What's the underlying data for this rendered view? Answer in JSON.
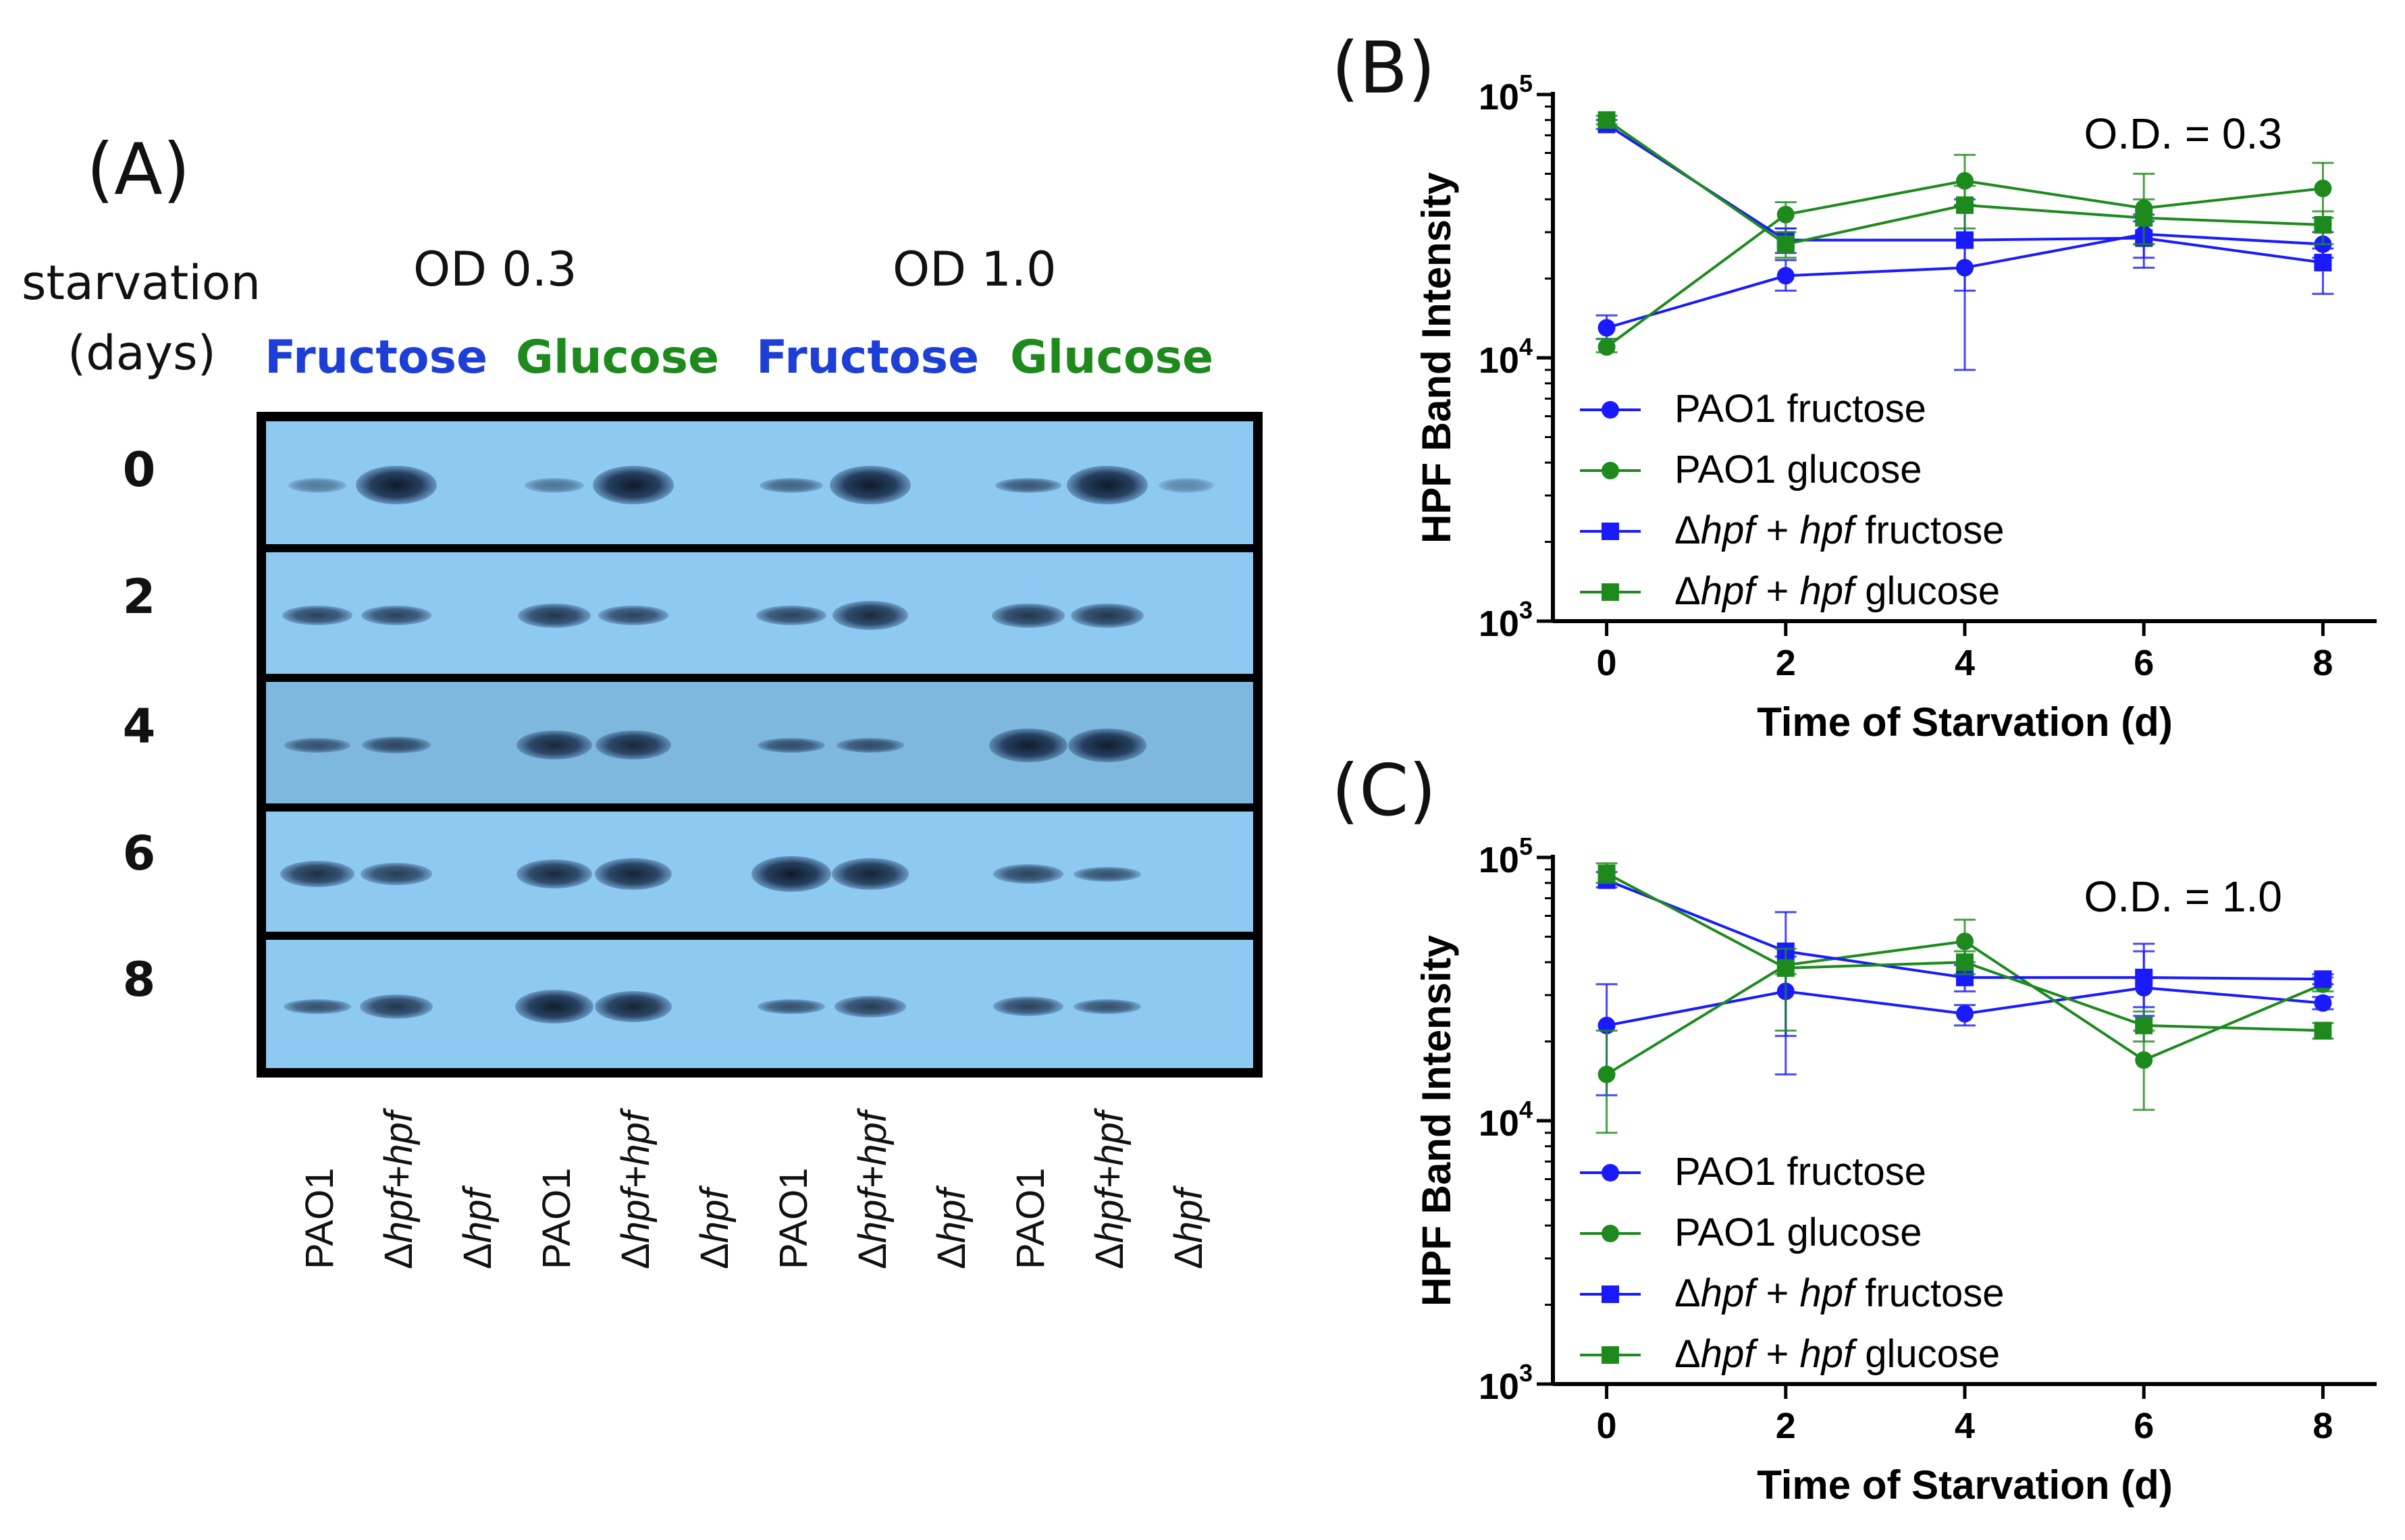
{
  "panel_a": {
    "letter": "(A)",
    "row_header": [
      "starvation",
      "(days)"
    ],
    "od_headers": [
      "OD 0.3",
      "OD 1.0"
    ],
    "sugars": [
      {
        "label": "Fructose",
        "color": "#1e3fd6"
      },
      {
        "label": "Glucose",
        "color": "#1e8a1e"
      },
      {
        "label": "Fructose",
        "color": "#1e3fd6"
      },
      {
        "label": "Glucose",
        "color": "#1e8a1e"
      }
    ],
    "days": [
      "0",
      "2",
      "4",
      "6",
      "8"
    ],
    "lanes": [
      {
        "pre": "",
        "it": "",
        "post": "PAO1"
      },
      {
        "pre": "Δ",
        "it": "hpf",
        "post": "+",
        "it2": "hpf"
      },
      {
        "pre": "Δ",
        "it": "hpf",
        "post": ""
      },
      {
        "pre": "",
        "it": "",
        "post": "PAO1"
      },
      {
        "pre": "Δ",
        "it": "hpf",
        "post": "+",
        "it2": "hpf"
      },
      {
        "pre": "Δ",
        "it": "hpf",
        "post": ""
      },
      {
        "pre": "",
        "it": "",
        "post": "PAO1"
      },
      {
        "pre": "Δ",
        "it": "hpf",
        "post": "+",
        "it2": "hpf"
      },
      {
        "pre": "Δ",
        "it": "hpf",
        "post": ""
      },
      {
        "pre": "",
        "it": "",
        "post": "PAO1"
      },
      {
        "pre": "Δ",
        "it": "hpf",
        "post": "+",
        "it2": "hpf"
      },
      {
        "pre": "Δ",
        "it": "hpf",
        "post": ""
      }
    ],
    "band_intensity": [
      [
        0.15,
        1.0,
        0.02,
        0.2,
        1.0,
        0.0,
        0.35,
        1.0,
        0.0,
        0.45,
        1.0,
        0.05
      ],
      [
        0.6,
        0.6,
        0.0,
        0.7,
        0.6,
        0.0,
        0.6,
        0.8,
        0.0,
        0.7,
        0.7,
        0.0
      ],
      [
        0.45,
        0.55,
        0.0,
        0.8,
        0.8,
        0.0,
        0.5,
        0.5,
        0.0,
        0.9,
        0.9,
        0.0
      ],
      [
        0.75,
        0.65,
        0.0,
        0.8,
        0.85,
        0.0,
        0.95,
        0.85,
        0.0,
        0.6,
        0.5,
        0.0
      ],
      [
        0.5,
        0.7,
        0.0,
        0.9,
        0.85,
        0.0,
        0.5,
        0.65,
        0.0,
        0.6,
        0.5,
        0.0
      ]
    ]
  },
  "chart_data": [
    {
      "type": "line",
      "panel": "(B)",
      "title": "",
      "annotation": "O.D. = 0.3",
      "xlabel": "Time of Starvation (d)",
      "ylabel": "HPF Band Intensity",
      "yscale": "log",
      "ylim": [
        1000,
        100000
      ],
      "xlim": [
        -0.6,
        8.6
      ],
      "xticks": [
        "0",
        "2",
        "4",
        "6",
        "8"
      ],
      "x": [
        0,
        2,
        4,
        6,
        8
      ],
      "legend_position": "bottom-left",
      "series": [
        {
          "name": "PAO1 fructose",
          "marker": "circle",
          "color": "#1a1aff",
          "values": [
            13000,
            20500,
            22000,
            29500,
            27000
          ],
          "err_hi": [
            14500,
            23500,
            38000,
            35000,
            30000
          ],
          "err_lo": [
            11800,
            18000,
            9000,
            24000,
            24000
          ]
        },
        {
          "name": "PAO1 glucose",
          "marker": "circle",
          "color": "#1e8a1e",
          "values": [
            11000,
            35000,
            47000,
            37000,
            44000
          ],
          "err_hi": [
            11800,
            39000,
            59000,
            50000,
            55000
          ],
          "err_lo": [
            10500,
            31000,
            38000,
            27000,
            34000
          ]
        },
        {
          "name": "Δhpf + hpf fructose",
          "label_parts": [
            "Δ",
            "hpf",
            " + ",
            "hpf",
            " fructose"
          ],
          "marker": "square",
          "color": "#1a1aff",
          "values": [
            77000,
            28000,
            28000,
            28500,
            23000
          ],
          "err_hi": [
            80000,
            31000,
            40000,
            33000,
            26000
          ],
          "err_lo": [
            74000,
            25000,
            18000,
            22000,
            17500
          ]
        },
        {
          "name": "Δhpf + hpf glucose",
          "label_parts": [
            "Δ",
            "hpf",
            " + ",
            "hpf",
            " glucose"
          ],
          "marker": "square",
          "color": "#1e8a1e",
          "values": [
            80000,
            27000,
            38000,
            34000,
            32000
          ],
          "err_hi": [
            83000,
            30000,
            45000,
            40000,
            36000
          ],
          "err_lo": [
            77000,
            24000,
            31000,
            27000,
            27000
          ]
        }
      ]
    },
    {
      "type": "line",
      "panel": "(C)",
      "title": "",
      "annotation": "O.D. = 1.0",
      "xlabel": "Time of Starvation (d)",
      "ylabel": "HPF Band Intensity",
      "yscale": "log",
      "ylim": [
        1000,
        100000
      ],
      "xlim": [
        -0.6,
        8.6
      ],
      "xticks": [
        "0",
        "2",
        "4",
        "6",
        "8"
      ],
      "x": [
        0,
        2,
        4,
        6,
        8
      ],
      "legend_position": "bottom-left",
      "series": [
        {
          "name": "PAO1 fructose",
          "marker": "circle",
          "color": "#1a1aff",
          "values": [
            23000,
            31000,
            25500,
            32000,
            28000
          ],
          "err_hi": [
            33000,
            42000,
            27500,
            44000,
            29500
          ],
          "err_lo": [
            12500,
            21000,
            23000,
            27000,
            26500
          ]
        },
        {
          "name": "PAO1 glucose",
          "marker": "circle",
          "color": "#1e8a1e",
          "values": [
            15000,
            39000,
            48000,
            17000,
            33000
          ],
          "err_hi": [
            22000,
            42000,
            58000,
            22000,
            35000
          ],
          "err_lo": [
            9000,
            36000,
            40000,
            11000,
            31000
          ]
        },
        {
          "name": "Δhpf + hpf fructose",
          "label_parts": [
            "Δ",
            "hpf",
            " + ",
            "hpf",
            " fructose"
          ],
          "marker": "square",
          "color": "#1a1aff",
          "values": [
            82000,
            44000,
            35000,
            35000,
            34500
          ],
          "err_hi": [
            88000,
            62000,
            39000,
            47000,
            36000
          ],
          "err_lo": [
            77000,
            15000,
            31000,
            25000,
            33000
          ]
        },
        {
          "name": "Δhpf + hpf glucose",
          "label_parts": [
            "Δ",
            "hpf",
            " + ",
            "hpf",
            " glucose"
          ],
          "marker": "square",
          "color": "#1e8a1e",
          "values": [
            87000,
            38000,
            40000,
            23000,
            22000
          ],
          "err_hi": [
            95000,
            45000,
            44000,
            26000,
            23500
          ],
          "err_lo": [
            80000,
            22000,
            36000,
            20000,
            20500
          ]
        }
      ]
    }
  ]
}
